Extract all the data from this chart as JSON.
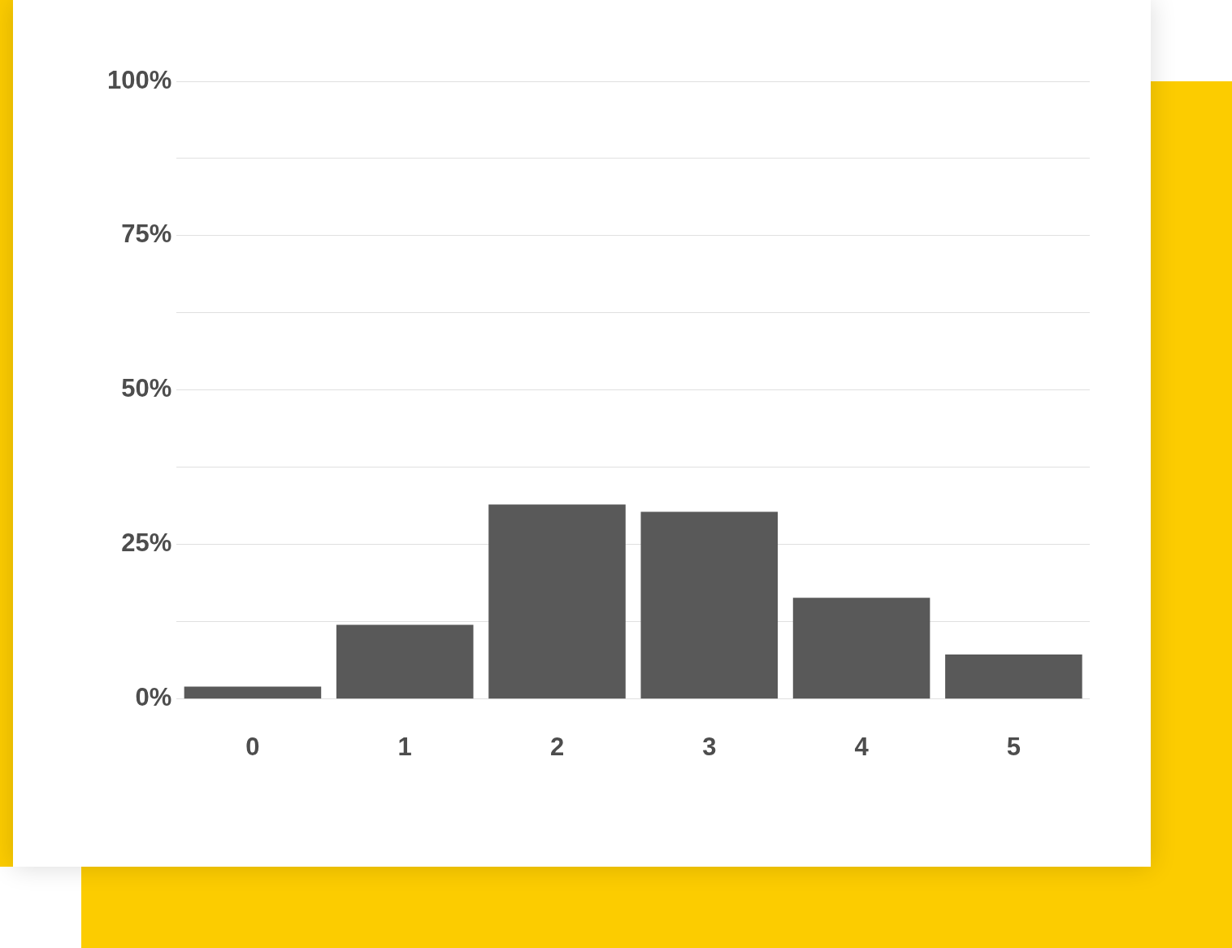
{
  "chart_data": {
    "type": "bar",
    "categories": [
      "0",
      "1",
      "2",
      "3",
      "4",
      "5"
    ],
    "values": [
      2,
      12,
      31.5,
      30.3,
      16.4,
      7.2
    ],
    "color": "#595959",
    "ylim": [
      0,
      100
    ],
    "yticks": [
      {
        "value": 0,
        "label": "0%"
      },
      {
        "value": 12.5,
        "label": null
      },
      {
        "value": 25,
        "label": "25%"
      },
      {
        "value": 37.5,
        "label": null
      },
      {
        "value": 50,
        "label": "50%"
      },
      {
        "value": 62.5,
        "label": null
      },
      {
        "value": 75,
        "label": "75%"
      },
      {
        "value": 87.5,
        "label": null
      },
      {
        "value": 100,
        "label": "100%"
      }
    ],
    "grid": "y",
    "legend": false
  }
}
